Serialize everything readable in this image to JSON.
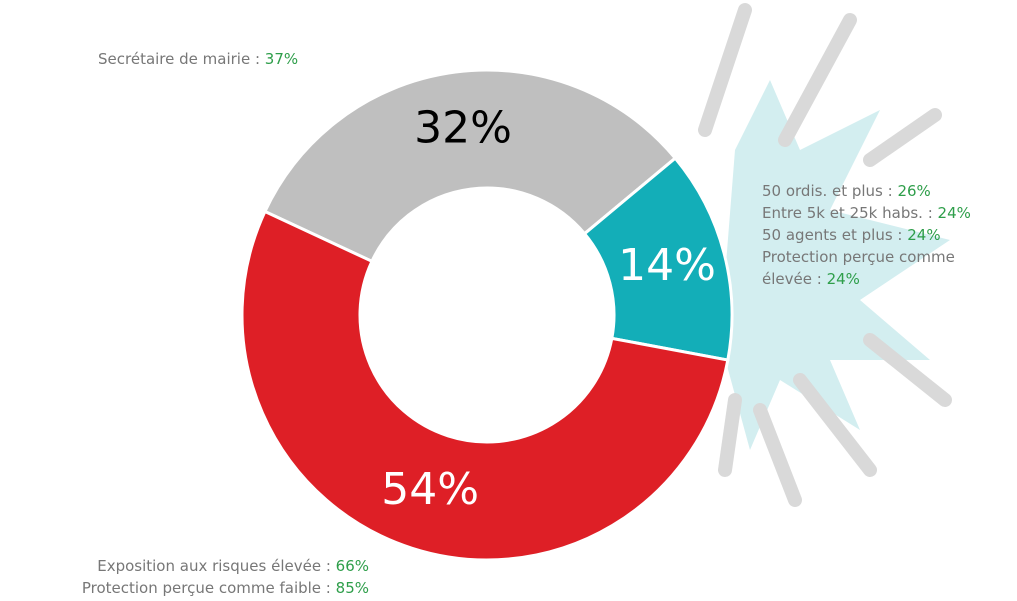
{
  "chart_data": {
    "type": "donut",
    "categories": [
      null,
      null,
      null
    ],
    "values": [
      32,
      14,
      54
    ],
    "value_labels": [
      "32%",
      "14%",
      "54%"
    ],
    "colors": [
      "#bfbfbf",
      "#13aeb8",
      "#de1f26"
    ],
    "annotations": [
      {
        "lines": [
          {
            "label": "Secrétaire de mairie :",
            "value": "37%"
          }
        ]
      },
      {
        "lines": [
          {
            "label": "50 ordis. et plus :",
            "value": "26%"
          },
          {
            "label": "Entre 5k et 25k habs. :",
            "value": "24%"
          },
          {
            "label": "50 agents et plus :",
            "value": "24%"
          },
          {
            "label": "Protection perçue comme élevée :",
            "value": "24%"
          }
        ]
      },
      {
        "lines": [
          {
            "label": "Exposition aux risques élevée :",
            "value": "66%"
          },
          {
            "label": "Protection perçue comme faible :",
            "value": "85%"
          }
        ]
      }
    ]
  }
}
